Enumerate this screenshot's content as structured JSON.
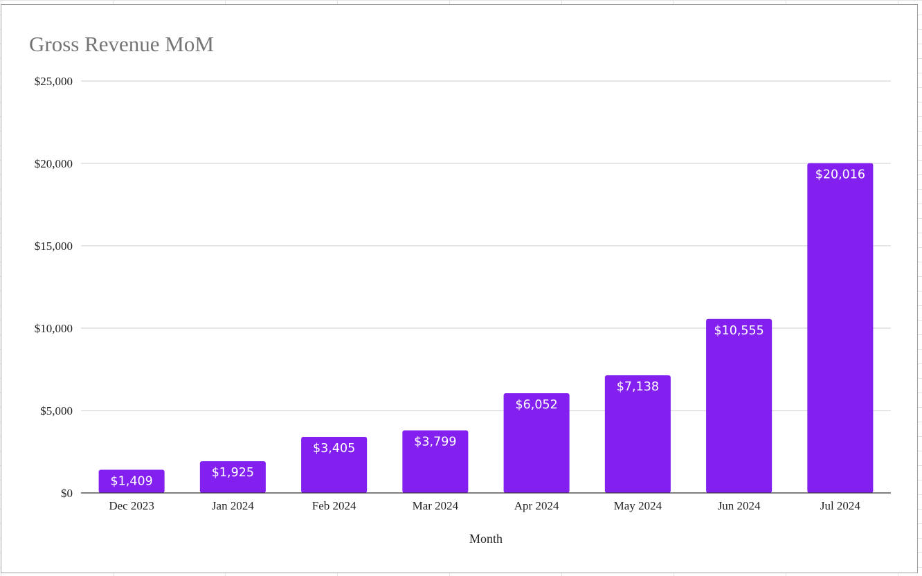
{
  "chart_data": {
    "type": "bar",
    "title": "Gross Revenue MoM",
    "xlabel": "Month",
    "ylabel": "",
    "categories": [
      "Dec 2023",
      "Jan 2024",
      "Feb 2024",
      "Mar 2024",
      "Apr 2024",
      "May 2024",
      "Jun 2024",
      "Jul 2024"
    ],
    "values": [
      1409,
      1925,
      3405,
      3799,
      6052,
      7138,
      10555,
      20016
    ],
    "data_labels": [
      "$1,409",
      "$1,925",
      "$3,405",
      "$3,799",
      "$6,052",
      "$7,138",
      "$10,555",
      "$20,016"
    ],
    "ylim": [
      0,
      25000
    ],
    "y_ticks": [
      0,
      5000,
      10000,
      15000,
      20000,
      25000
    ],
    "y_tick_labels": [
      "$0",
      "$5,000",
      "$10,000",
      "$15,000",
      "$20,000",
      "$25,000"
    ],
    "grid": true,
    "legend": "none",
    "bar_color": "#8320f0",
    "gridline_color": "#cccccc",
    "axis_color": "#333333"
  }
}
